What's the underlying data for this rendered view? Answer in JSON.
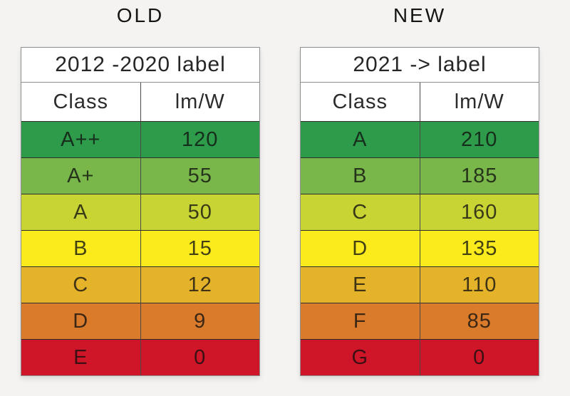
{
  "page": {
    "background": "#f4f3f1"
  },
  "tables": [
    {
      "title": "OLD",
      "header": "2012 -2020 label",
      "columns": {
        "class": "Class",
        "efficacy": "lm/W"
      },
      "rows": [
        {
          "class": "A++",
          "value": "120",
          "color": "#2e9b4b"
        },
        {
          "class": "A+",
          "value": "55",
          "color": "#7ab74a"
        },
        {
          "class": "A",
          "value": "50",
          "color": "#c8d334"
        },
        {
          "class": "B",
          "value": "15",
          "color": "#fbeb1d"
        },
        {
          "class": "C",
          "value": "12",
          "color": "#e5b32a"
        },
        {
          "class": "D",
          "value": "9",
          "color": "#da7b2b"
        },
        {
          "class": "E",
          "value": "0",
          "color": "#cf1528"
        }
      ]
    },
    {
      "title": "NEW",
      "header": "2021 -> label",
      "columns": {
        "class": "Class",
        "efficacy": "lm/W"
      },
      "rows": [
        {
          "class": "A",
          "value": "210",
          "color": "#2e9b4b"
        },
        {
          "class": "B",
          "value": "185",
          "color": "#7ab74a"
        },
        {
          "class": "C",
          "value": "160",
          "color": "#c8d334"
        },
        {
          "class": "D",
          "value": "135",
          "color": "#fbeb1d"
        },
        {
          "class": "E",
          "value": "110",
          "color": "#e5b32a"
        },
        {
          "class": "F",
          "value": "85",
          "color": "#da7b2b"
        },
        {
          "class": "G",
          "value": "0",
          "color": "#cf1528"
        }
      ]
    }
  ],
  "chart_data": [
    {
      "type": "table",
      "title": "OLD",
      "subtitle": "2012 -2020 label",
      "columns": [
        "Class",
        "lm/W"
      ],
      "rows": [
        [
          "A++",
          120
        ],
        [
          "A+",
          55
        ],
        [
          "A",
          50
        ],
        [
          "B",
          15
        ],
        [
          "C",
          12
        ],
        [
          "D",
          9
        ],
        [
          "E",
          0
        ]
      ],
      "row_colors": [
        "#2e9b4b",
        "#7ab74a",
        "#c8d334",
        "#fbeb1d",
        "#e5b32a",
        "#da7b2b",
        "#cf1528"
      ]
    },
    {
      "type": "table",
      "title": "NEW",
      "subtitle": "2021 -> label",
      "columns": [
        "Class",
        "lm/W"
      ],
      "rows": [
        [
          "A",
          210
        ],
        [
          "B",
          185
        ],
        [
          "C",
          160
        ],
        [
          "D",
          135
        ],
        [
          "E",
          110
        ],
        [
          "F",
          85
        ],
        [
          "G",
          0
        ]
      ],
      "row_colors": [
        "#2e9b4b",
        "#7ab74a",
        "#c8d334",
        "#fbeb1d",
        "#e5b32a",
        "#da7b2b",
        "#cf1528"
      ]
    }
  ]
}
